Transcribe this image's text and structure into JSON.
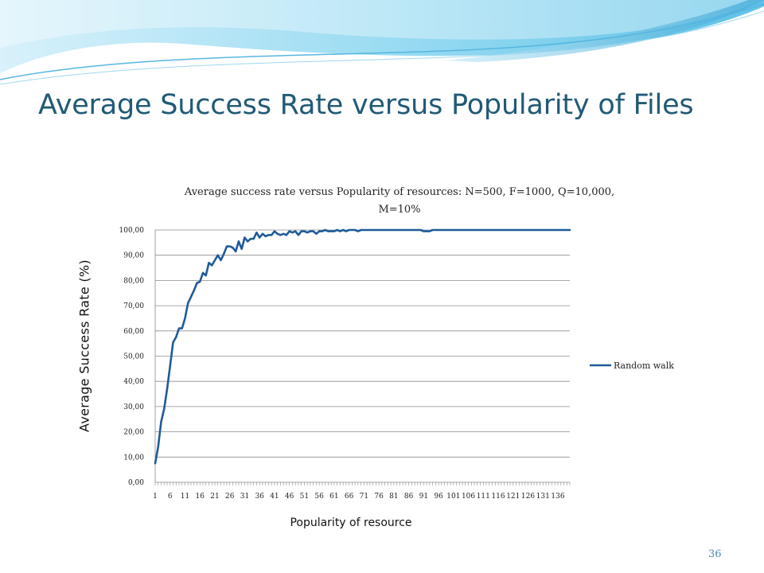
{
  "slide": {
    "title": "Average Success Rate versus Popularity of Files",
    "page_number": "36"
  },
  "chart_data": {
    "type": "line",
    "title": "Average success rate versus Popularity of resources: N=500, F=1000, Q=10,000, M=10%",
    "xlabel": "Popularity of resource",
    "ylabel": "Average Success Rate (%)",
    "ylim": [
      0,
      100
    ],
    "y_ticks": [
      "0,00",
      "10,00",
      "20,00",
      "30,00",
      "40,00",
      "50,00",
      "60,00",
      "70,00",
      "80,00",
      "90,00",
      "100,00"
    ],
    "x_ticks": [
      "1",
      "6",
      "11",
      "16",
      "21",
      "26",
      "31",
      "36",
      "41",
      "46",
      "51",
      "56",
      "61",
      "66",
      "71",
      "76",
      "81",
      "86",
      "91",
      "96",
      "101",
      "106",
      "111",
      "116",
      "121",
      "126",
      "131",
      "136"
    ],
    "x_range": [
      1,
      140
    ],
    "grid": true,
    "legend_position": "right",
    "colors": {
      "series": "#1f5b99"
    },
    "series": [
      {
        "name": "Random walk",
        "x": [
          1,
          2,
          3,
          4,
          5,
          6,
          7,
          8,
          9,
          10,
          11,
          12,
          13,
          14,
          15,
          16,
          17,
          18,
          19,
          20,
          21,
          22,
          23,
          24,
          25,
          26,
          27,
          28,
          29,
          30,
          31,
          32,
          33,
          34,
          35,
          36,
          37,
          38,
          39,
          40,
          41,
          42,
          43,
          44,
          45,
          46,
          47,
          48,
          49,
          50,
          51,
          52,
          53,
          54,
          55,
          56,
          57,
          58,
          59,
          60,
          61,
          62,
          63,
          64,
          65,
          66,
          67,
          68,
          69,
          70,
          75,
          80,
          85,
          90,
          91,
          92,
          93,
          94,
          95,
          100,
          110,
          120,
          130,
          140
        ],
        "values": [
          7.5,
          14,
          24,
          29,
          37,
          46,
          55.5,
          57.5,
          61,
          61,
          65,
          71,
          73.5,
          76,
          79,
          79.5,
          83,
          82,
          87,
          86,
          88,
          90,
          88,
          90.5,
          93.5,
          93.5,
          93,
          91.5,
          95.5,
          92.5,
          97,
          95.5,
          96.5,
          96.5,
          99,
          97,
          98.5,
          97.5,
          98,
          98,
          99.5,
          98.5,
          98,
          98.5,
          98,
          99.5,
          99,
          99.5,
          98,
          99.5,
          99.5,
          99,
          99.5,
          99.5,
          98.5,
          99.5,
          99.5,
          100,
          99.5,
          99.5,
          99.5,
          100,
          99.5,
          100,
          99.5,
          100,
          100,
          100,
          99.5,
          100,
          100,
          100,
          100,
          100,
          99.5,
          99.5,
          99.5,
          100,
          100,
          100,
          100,
          100,
          100,
          100
        ]
      }
    ]
  }
}
